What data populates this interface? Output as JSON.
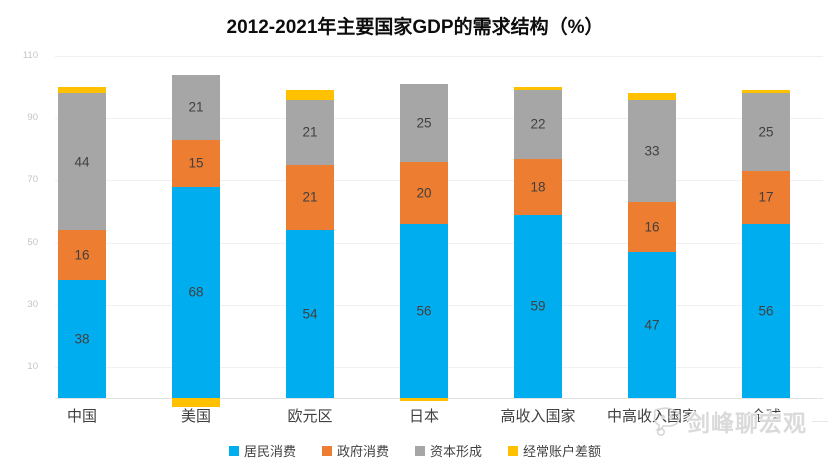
{
  "chart_data": {
    "type": "bar",
    "stacked": true,
    "title": "2012-2021年主要国家GDP的需求结构（%）",
    "categories": [
      "中国",
      "美国",
      "欧元区",
      "日本",
      "高收入国家",
      "中高收入国家",
      "全球"
    ],
    "series": [
      {
        "name": "居民消费",
        "color": "#00AEEF",
        "values": [
          38,
          68,
          54,
          56,
          59,
          47,
          56
        ],
        "labels_visible": true
      },
      {
        "name": "政府消费",
        "color": "#ED7D31",
        "values": [
          16,
          15,
          21,
          20,
          18,
          16,
          17
        ],
        "labels_visible": true
      },
      {
        "name": "资本形成",
        "color": "#A6A6A6",
        "values": [
          44,
          21,
          21,
          25,
          22,
          33,
          25
        ],
        "labels_visible": true
      },
      {
        "name": "经常账户差额",
        "color": "#FFC000",
        "values": [
          2,
          -3,
          3,
          -1,
          1,
          2,
          1
        ],
        "labels_visible": false
      }
    ],
    "xlabel": "",
    "ylabel": "",
    "ylim": [
      0,
      110
    ],
    "yticks": [
      10,
      30,
      50,
      70,
      90,
      110
    ],
    "grid": true,
    "legend_position": "bottom"
  },
  "watermark": {
    "text": "剑峰聊宏观"
  },
  "style": {
    "grid_color": "#f0f0f0",
    "baseline_color": "#e3e3e3",
    "tick_label_color": "#c4c4c4",
    "segment_label_color": "#404040",
    "axis_label_color": "#404040",
    "title_color": "#0d0d0d",
    "watermark_color": "#dadada"
  }
}
